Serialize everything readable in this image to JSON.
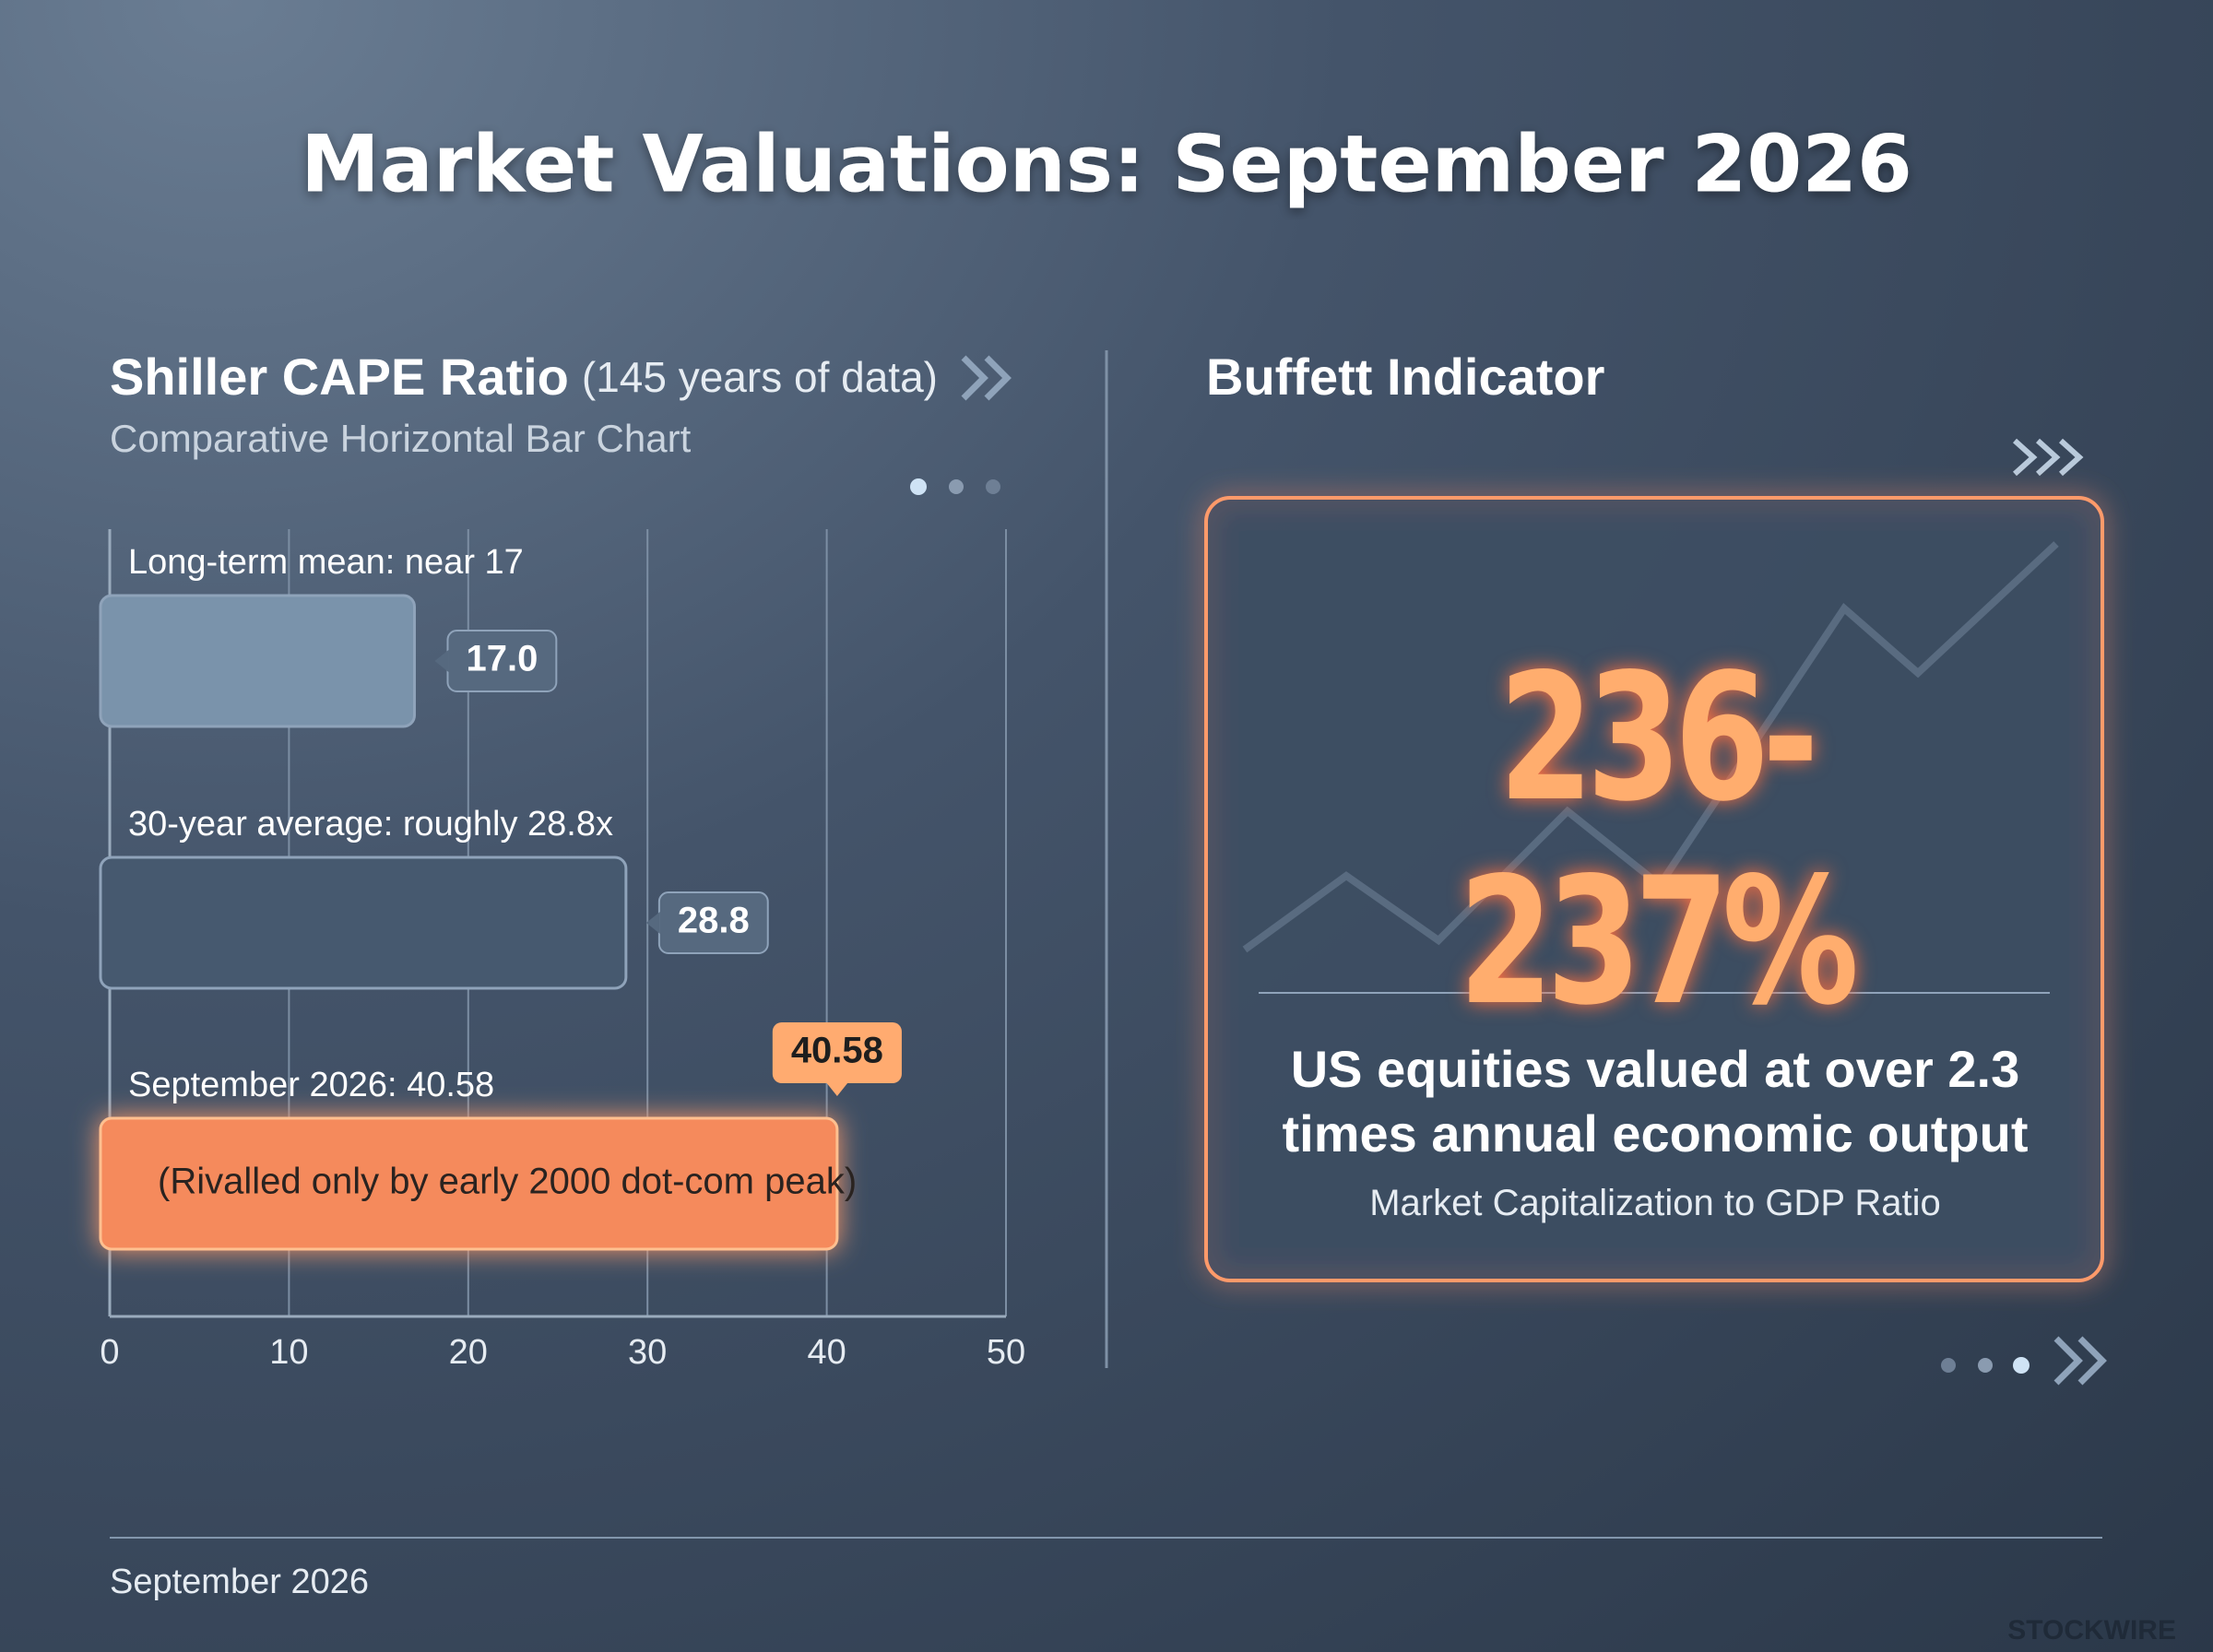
{
  "title": "Market Valuations: September 2026",
  "chart_data": {
    "type": "barh",
    "title": "Shiller CAPE Ratio",
    "title_note": "(145 years of data)",
    "subtitle": "Comparative Horizontal Bar Chart",
    "categories": [
      "Long-term mean: near 17",
      "30-year average: roughly 28.8x",
      "September 2026: 40.58"
    ],
    "values": [
      17.0,
      28.8,
      40.58
    ],
    "value_labels": [
      "17.0",
      "28.8",
      "40.58"
    ],
    "colors": [
      "#7a93ab",
      "#46596f",
      "#f58a5c"
    ],
    "annotation": "(Rivalled only by early 2000 dot-com peak)",
    "xlim": [
      0,
      50
    ],
    "xticks": [
      0,
      10,
      20,
      30,
      40,
      50
    ],
    "grid": true
  },
  "buffett": {
    "title": "Buffett Indicator",
    "headline": "236-237%",
    "description": "US equities valued at over 2.3 times annual economic output",
    "caption": "Market Capitalization to GDP Ratio"
  },
  "footer": {
    "date": "September 2026",
    "brand": "STOCKWIRE"
  }
}
